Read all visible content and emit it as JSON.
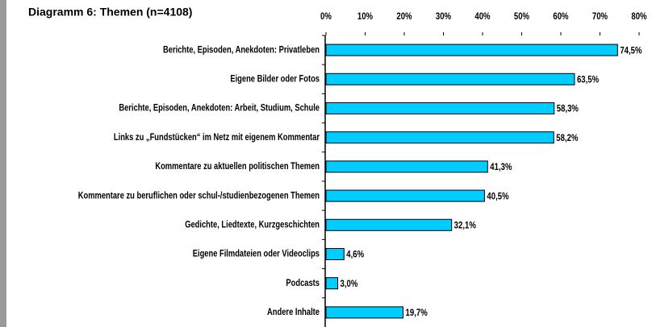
{
  "chart_data": {
    "type": "barh",
    "title": "Diagramm 6: Themen (n=4108)",
    "categories": [
      "Berichte, Episoden, Anekdoten: Privatleben",
      "Eigene Bilder oder Fotos",
      "Berichte, Episoden, Anekdoten: Arbeit, Studium, Schule",
      "Links zu „Fundstücken“ im Netz mit eigenem Kommentar",
      "Kommentare zu aktuellen politischen Themen",
      "Kommentare zu beruflichen oder schul-/studienbezogenen Themen",
      "Gedichte, Liedtexte, Kurzgeschichten",
      "Eigene Filmdateien oder Videoclips",
      "Podcasts",
      "Andere Inhalte"
    ],
    "values": [
      74.5,
      63.5,
      58.3,
      58.2,
      41.3,
      40.5,
      32.1,
      4.6,
      3.0,
      19.7
    ],
    "value_labels": [
      "74,5%",
      "63,5%",
      "58,3%",
      "58,2%",
      "41,3%",
      "40,5%",
      "32,1%",
      "4,6%",
      "3,0%",
      "19,7%"
    ],
    "color": "#00ccff",
    "xlim": [
      0,
      80
    ],
    "xticks": [
      {
        "value": 0,
        "label": "0%"
      },
      {
        "value": 10,
        "label": "10%"
      },
      {
        "value": 20,
        "label": "20%"
      },
      {
        "value": 30,
        "label": "30%"
      },
      {
        "value": 40,
        "label": "40%"
      },
      {
        "value": 50,
        "label": "50%"
      },
      {
        "value": 60,
        "label": "60%"
      },
      {
        "value": 70,
        "label": "70%"
      },
      {
        "value": 80,
        "label": "80%"
      }
    ]
  }
}
